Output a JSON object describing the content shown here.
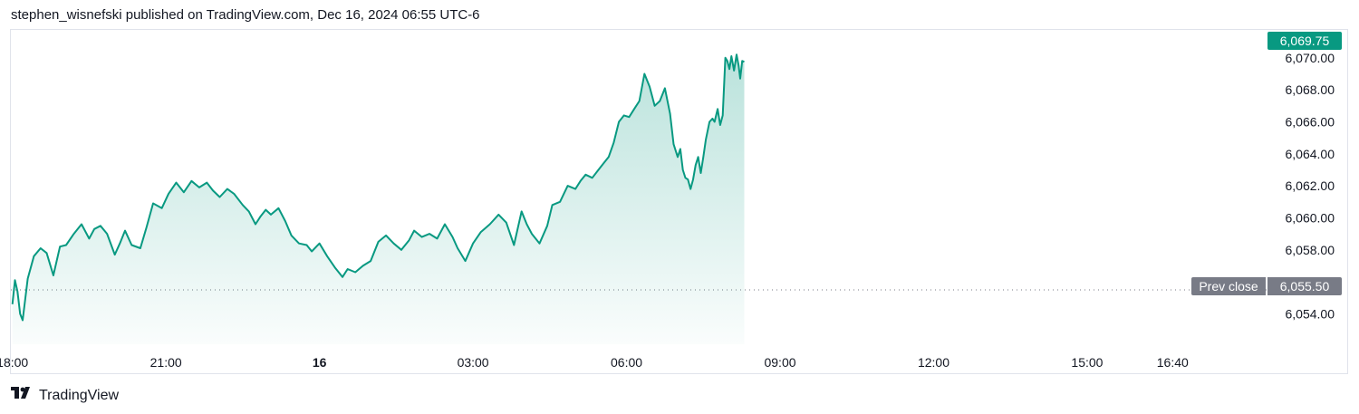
{
  "header": {
    "publisher_line": "stephen_wisnefski published on TradingView.com, Dec 16, 2024 06:55 UTC-6"
  },
  "footer": {
    "brand": "TradingView",
    "logo_icon": "tradingview-logo-icon"
  },
  "price_badge": {
    "label": "6,069.75",
    "color": "#089981"
  },
  "prev_close": {
    "label": "Prev close",
    "value_label": "6,055.50",
    "value": 6055.5,
    "color": "#787b86"
  },
  "chart_data": {
    "type": "area",
    "line_color": "#089981",
    "fill_color": "#089981",
    "y_ticks": [
      "6,054.00",
      "6,056.00",
      "6,058.00",
      "6,060.00",
      "6,062.00",
      "6,064.00",
      "6,066.00",
      "6,068.00",
      "6,070.00"
    ],
    "y_tick_values": [
      6054,
      6056,
      6058,
      6060,
      6062,
      6064,
      6066,
      6068,
      6070
    ],
    "ylim": [
      6052.1,
      6071.8
    ],
    "x_ticks": [
      {
        "label": "18:00",
        "hours": 0
      },
      {
        "label": "21:00",
        "hours": 3
      },
      {
        "label": "16",
        "hours": 6,
        "bold": true
      },
      {
        "label": "03:00",
        "hours": 9
      },
      {
        "label": "06:00",
        "hours": 12
      },
      {
        "label": "09:00",
        "hours": 15
      },
      {
        "label": "12:00",
        "hours": 18
      },
      {
        "label": "15:00",
        "hours": 21
      },
      {
        "label": "16:40",
        "hours": 22.67
      }
    ],
    "xlim_hours": [
      -0.03,
      24.4
    ],
    "series": [
      {
        "x_hours": [
          0,
          0.05,
          0.1,
          0.15,
          0.2,
          0.3,
          0.42,
          0.55,
          0.67,
          0.8,
          0.93,
          1.05,
          1.2,
          1.35,
          1.5,
          1.6,
          1.72,
          1.85,
          2.0,
          2.1,
          2.2,
          2.33,
          2.5,
          2.62,
          2.75,
          2.92,
          3.05,
          3.2,
          3.35,
          3.5,
          3.65,
          3.8,
          3.92,
          4.05,
          4.2,
          4.33,
          4.5,
          4.62,
          4.75,
          4.85,
          4.95,
          5.05,
          5.2,
          5.33,
          5.45,
          5.6,
          5.75,
          5.85,
          6.0,
          6.15,
          6.3,
          6.45,
          6.55,
          6.7,
          6.85,
          7.0,
          7.15,
          7.3,
          7.45,
          7.6,
          7.75,
          7.85,
          8.0,
          8.15,
          8.3,
          8.45,
          8.6,
          8.7,
          8.85,
          9.0,
          9.15,
          9.33,
          9.5,
          9.65,
          9.8,
          9.95,
          10.05,
          10.15,
          10.3,
          10.45,
          10.55,
          10.7,
          10.85,
          11.0,
          11.1,
          11.2,
          11.33,
          11.45,
          11.55,
          11.65,
          11.75,
          11.85,
          11.95,
          12.05,
          12.15,
          12.25,
          12.35,
          12.45,
          12.55,
          12.65,
          12.75,
          12.85,
          12.92,
          13.0,
          13.05,
          13.1,
          13.15,
          13.2,
          13.25,
          13.3,
          13.35,
          13.4,
          13.45,
          13.5,
          13.55,
          13.62,
          13.68,
          13.72,
          13.78,
          13.83
        ],
        "values": [
          6054.6,
          6056.1,
          6055.4,
          6054.0,
          6053.6,
          6056.2,
          6057.6,
          6058.1,
          6057.8,
          6056.4,
          6058.2,
          6058.3,
          6059.0,
          6059.6,
          6058.7,
          6059.3,
          6059.5,
          6059.0,
          6057.7,
          6058.4,
          6059.2,
          6058.3,
          6058.1,
          6059.4,
          6060.9,
          6060.6,
          6061.5,
          6062.2,
          6061.6,
          6062.3,
          6061.9,
          6062.2,
          6061.7,
          6061.3,
          6061.8,
          6061.5,
          6060.8,
          6060.4,
          6059.6,
          6060.1,
          6060.5,
          6060.2,
          6060.6,
          6059.8,
          6058.9,
          6058.4,
          6058.3,
          6057.9,
          6058.4,
          6057.6,
          6056.9,
          6056.3,
          6056.8,
          6056.6,
          6057.0,
          6057.3,
          6058.5,
          6058.9,
          6058.4,
          6058.0,
          6058.6,
          6059.2,
          6058.8,
          6059.0,
          6058.7,
          6059.6,
          6058.8,
          6058.1,
          6057.3,
          6058.4,
          6059.1,
          6059.6,
          6060.2,
          6059.7,
          6058.3,
          6060.4,
          6059.6,
          6059.0,
          6058.4,
          6059.5,
          6060.8,
          6061.0,
          6062.0,
          6061.8,
          6062.3,
          6062.7,
          6062.5,
          6063.0,
          6063.4,
          6063.8,
          6064.7,
          6066.0,
          6066.4,
          6066.3,
          6066.8,
          6067.3,
          6069.0,
          6068.2,
          6067.0,
          6067.3,
          6068.1,
          6066.5,
          6064.6,
          6063.8,
          6064.3,
          6063.0,
          6062.5,
          6062.4,
          6061.8,
          6062.4,
          6063.3,
          6063.8,
          6062.8,
          6063.8,
          6064.9,
          6066.0,
          6066.2,
          6066.0,
          6066.8,
          6065.8
        ]
      },
      {
        "x_hours": [
          13.88,
          13.93,
          13.97,
          14.01,
          14.05,
          14.1,
          14.15,
          14.19,
          14.22,
          14.26,
          14.3
        ],
        "values": [
          6066.4,
          6070.0,
          6069.8,
          6069.3,
          6070.1,
          6069.2,
          6070.2,
          6069.5,
          6068.7,
          6069.8,
          6069.75
        ]
      }
    ]
  }
}
